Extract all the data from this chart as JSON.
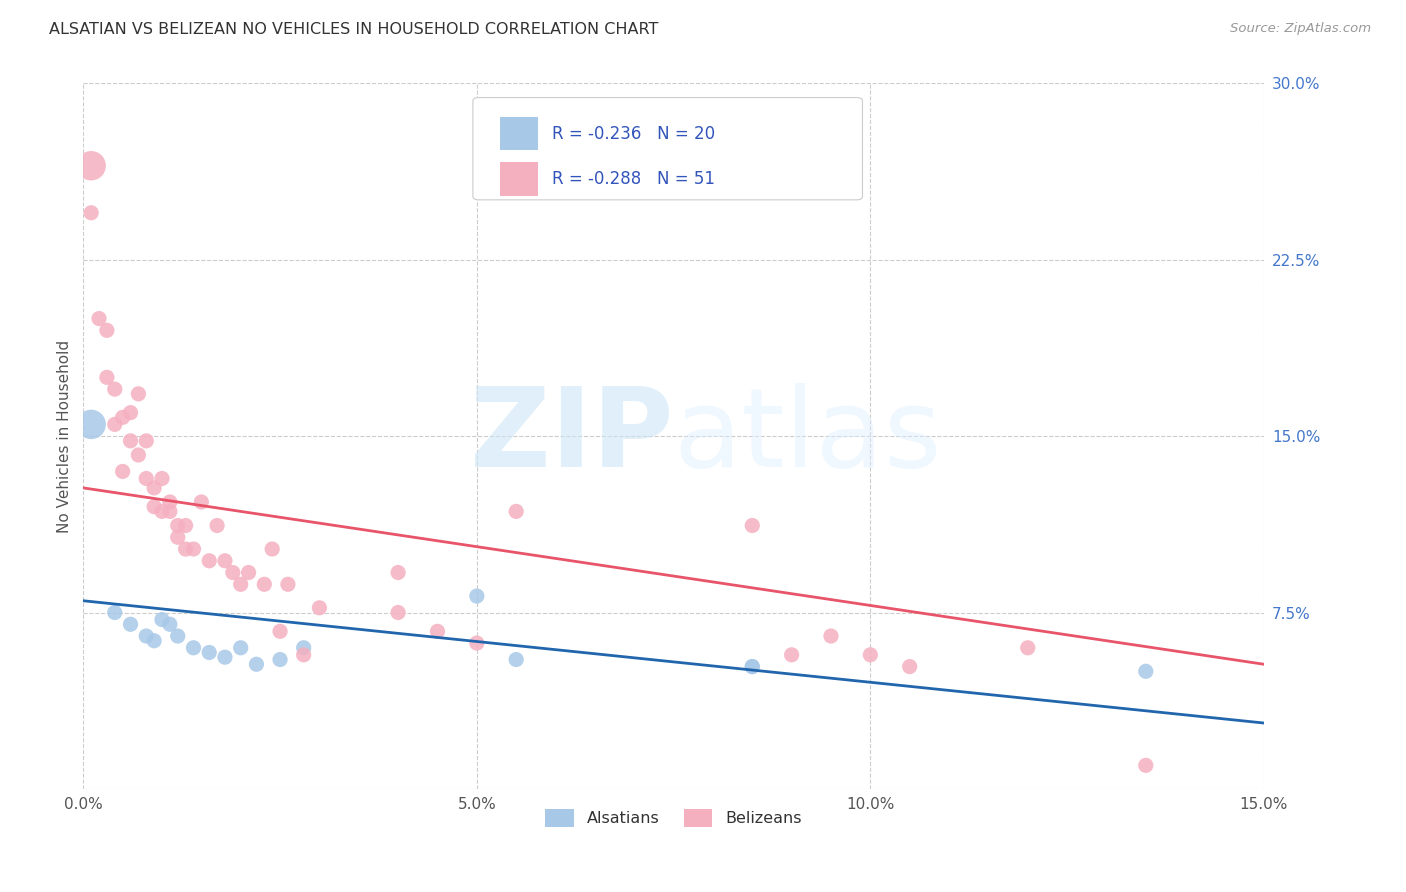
{
  "title": "ALSATIAN VS BELIZEAN NO VEHICLES IN HOUSEHOLD CORRELATION CHART",
  "source": "Source: ZipAtlas.com",
  "ylabel": "No Vehicles in Household",
  "xlim": [
    0.0,
    0.15
  ],
  "ylim": [
    0.0,
    0.3
  ],
  "xticks": [
    0.0,
    0.05,
    0.1,
    0.15
  ],
  "yticks_right": [
    0.0,
    0.075,
    0.15,
    0.225,
    0.3
  ],
  "yticklabels_right": [
    "",
    "7.5%",
    "15.0%",
    "22.5%",
    "30.0%"
  ],
  "watermark_zip": "ZIP",
  "watermark_atlas": "atlas",
  "background_color": "#ffffff",
  "grid_color": "#cccccc",
  "alsatian_color": "#a8c8e8",
  "belizean_color": "#f5b0c0",
  "alsatian_line_color": "#2166ac",
  "belizean_line_color": "#e8546a",
  "alsatian_label": "Alsatians",
  "belizean_label": "Belizeans",
  "alsatian_R": "-0.236",
  "alsatian_N": "20",
  "belizean_R": "-0.288",
  "belizean_N": "51",
  "legend_text_color": "#3355bb",
  "alsatian_x": [
    0.001,
    0.004,
    0.006,
    0.008,
    0.009,
    0.01,
    0.011,
    0.012,
    0.014,
    0.016,
    0.018,
    0.02,
    0.022,
    0.025,
    0.028,
    0.05,
    0.055,
    0.085,
    0.135,
    0.085
  ],
  "alsatian_y": [
    0.155,
    0.075,
    0.07,
    0.065,
    0.063,
    0.072,
    0.07,
    0.065,
    0.06,
    0.058,
    0.056,
    0.06,
    0.053,
    0.055,
    0.06,
    0.082,
    0.055,
    0.052,
    0.05,
    0.052
  ],
  "alsatian_size": [
    450,
    120,
    120,
    120,
    120,
    120,
    120,
    120,
    120,
    120,
    120,
    120,
    120,
    120,
    120,
    120,
    120,
    120,
    120,
    120
  ],
  "belizean_x": [
    0.001,
    0.001,
    0.002,
    0.003,
    0.003,
    0.004,
    0.004,
    0.005,
    0.005,
    0.006,
    0.006,
    0.007,
    0.007,
    0.008,
    0.008,
    0.009,
    0.009,
    0.01,
    0.01,
    0.011,
    0.011,
    0.012,
    0.012,
    0.013,
    0.013,
    0.014,
    0.015,
    0.016,
    0.017,
    0.018,
    0.019,
    0.02,
    0.021,
    0.023,
    0.024,
    0.025,
    0.026,
    0.028,
    0.03,
    0.04,
    0.04,
    0.045,
    0.05,
    0.055,
    0.085,
    0.09,
    0.095,
    0.1,
    0.105,
    0.12,
    0.135
  ],
  "belizean_y": [
    0.265,
    0.245,
    0.2,
    0.195,
    0.175,
    0.17,
    0.155,
    0.158,
    0.135,
    0.16,
    0.148,
    0.168,
    0.142,
    0.148,
    0.132,
    0.128,
    0.12,
    0.118,
    0.132,
    0.122,
    0.118,
    0.112,
    0.107,
    0.112,
    0.102,
    0.102,
    0.122,
    0.097,
    0.112,
    0.097,
    0.092,
    0.087,
    0.092,
    0.087,
    0.102,
    0.067,
    0.087,
    0.057,
    0.077,
    0.075,
    0.092,
    0.067,
    0.062,
    0.118,
    0.112,
    0.057,
    0.065,
    0.057,
    0.052,
    0.06,
    0.01
  ],
  "belizean_size": [
    450,
    120,
    120,
    120,
    120,
    120,
    120,
    120,
    120,
    120,
    120,
    120,
    120,
    120,
    120,
    120,
    120,
    120,
    120,
    120,
    120,
    120,
    120,
    120,
    120,
    120,
    120,
    120,
    120,
    120,
    120,
    120,
    120,
    120,
    120,
    120,
    120,
    120,
    120,
    120,
    120,
    120,
    120,
    120,
    120,
    120,
    120,
    120,
    120,
    120,
    120
  ],
  "alsatian_trendline_x": [
    0.0,
    0.15
  ],
  "alsatian_trendline_y": [
    0.08,
    0.028
  ],
  "belizean_trendline_x": [
    0.0,
    0.15
  ],
  "belizean_trendline_y": [
    0.128,
    0.053
  ]
}
